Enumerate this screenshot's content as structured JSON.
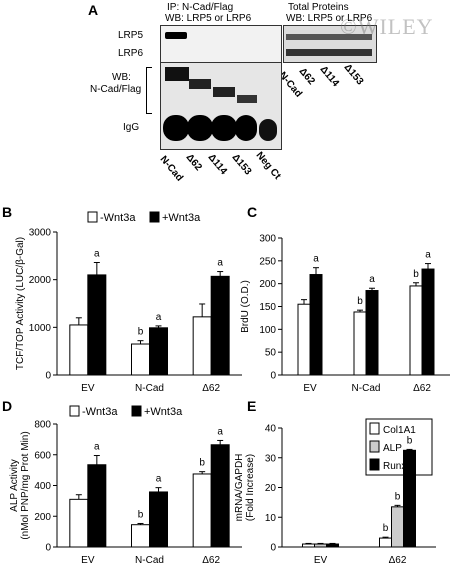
{
  "watermark": "©WILEY",
  "panelA": {
    "letter": "A",
    "ip_title1": "IP: N-Cad/Flag",
    "ip_title2": "WB: LRP5 or LRP6",
    "total_title1": "Total Proteins",
    "total_title2": "WB: LRP5 or LRP6",
    "row_lrp5": "LRP5",
    "row_lrp6": "LRP6",
    "wb_label1": "WB:",
    "wb_label2": "N-Cad/Flag",
    "igg": "IgG",
    "lanes_bottom": [
      "N-Cad",
      "Δ62",
      "Δ114",
      "Δ153",
      "Neg Ct"
    ],
    "lanes_total": [
      "N-Cad",
      "Δ62",
      "Δ114",
      "Δ153"
    ]
  },
  "chart_data": [
    {
      "panel": "B",
      "type": "bar",
      "categories": [
        "EV",
        "N-Cad",
        "Δ62"
      ],
      "series": [
        {
          "name": "-Wnt3a",
          "values": [
            1050,
            650,
            1220
          ],
          "errors": [
            150,
            70,
            270
          ],
          "color": "#ffffff"
        },
        {
          "name": "+Wnt3a",
          "values": [
            2100,
            990,
            2070
          ],
          "errors": [
            260,
            40,
            100
          ],
          "color": "#000000"
        }
      ],
      "ylabel": "TCF/TOP Activity (LUC/β-Gal)",
      "ylim": [
        0,
        3000
      ],
      "yticks": [
        0,
        1000,
        2000,
        3000
      ],
      "annotations": [
        [
          "",
          "a"
        ],
        [
          "b",
          "a"
        ],
        [
          "",
          "a"
        ]
      ]
    },
    {
      "panel": "C",
      "type": "bar",
      "categories": [
        "EV",
        "N-Cad",
        "Δ62"
      ],
      "series": [
        {
          "name": "-Wnt3a",
          "values": [
            155,
            138,
            195
          ],
          "errors": [
            10,
            4,
            7
          ],
          "color": "#ffffff"
        },
        {
          "name": "+Wnt3a",
          "values": [
            220,
            185,
            232
          ],
          "errors": [
            15,
            5,
            12
          ],
          "color": "#000000"
        }
      ],
      "ylabel": "BrdU (O.D.)",
      "ylim": [
        0,
        300
      ],
      "yticks": [
        0,
        50,
        100,
        150,
        200,
        250,
        300
      ],
      "annotations": [
        [
          "",
          "a"
        ],
        [
          "b",
          "a"
        ],
        [
          "b",
          "a"
        ]
      ]
    },
    {
      "panel": "D",
      "type": "bar",
      "categories": [
        "EV",
        "N-Cad",
        "Δ62"
      ],
      "series": [
        {
          "name": "-Wnt3a",
          "values": [
            310,
            145,
            475
          ],
          "errors": [
            30,
            8,
            15
          ],
          "color": "#ffffff"
        },
        {
          "name": "+Wnt3a",
          "values": [
            535,
            358,
            665
          ],
          "errors": [
            60,
            28,
            28
          ],
          "color": "#000000"
        }
      ],
      "ylabel": "ALP Activity",
      "ylabel2": "(nMol PNP/mg Prot Min)",
      "ylim": [
        0,
        800
      ],
      "yticks": [
        0,
        200,
        400,
        600,
        800
      ],
      "annotations": [
        [
          "",
          "a"
        ],
        [
          "b",
          "a"
        ],
        [
          "b",
          "a"
        ]
      ]
    },
    {
      "panel": "E",
      "type": "bar",
      "categories": [
        "EV",
        "Δ62"
      ],
      "series": [
        {
          "name": "Col1A1",
          "values": [
            1,
            3
          ],
          "errors": [
            0.2,
            0.3
          ],
          "color": "#ffffff"
        },
        {
          "name": "ALP",
          "values": [
            1,
            13.5
          ],
          "errors": [
            0.2,
            0.5
          ],
          "color": "#cccccc"
        },
        {
          "name": "Runx2",
          "values": [
            1,
            32.5
          ],
          "errors": [
            0.2,
            0.3
          ],
          "color": "#000000"
        }
      ],
      "ylabel": "mRNA/GAPDH",
      "ylabel2": "(Fold Increase)",
      "ylim": [
        0,
        40
      ],
      "yticks": [
        0,
        10,
        20,
        30,
        40
      ],
      "annotations": [
        [
          "",
          "",
          ""
        ],
        [
          "b",
          "b",
          "b"
        ]
      ]
    }
  ]
}
